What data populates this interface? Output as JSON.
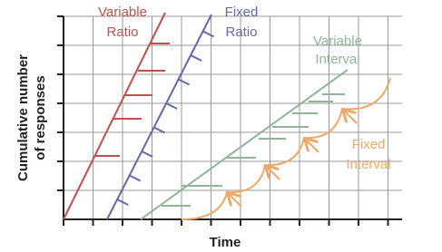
{
  "labels": {
    "variable_ratio": [
      "Variable",
      "Ratio"
    ],
    "fixed_ratio": [
      "Fixed",
      "Ratio"
    ],
    "variable_interval": [
      "Variable",
      "Interval"
    ],
    "fixed_interval": [
      "Fixed",
      "Interval"
    ]
  },
  "axes": {
    "x_label": "Time",
    "y_label": [
      "Cumulative number",
      "of responses"
    ]
  }
}
